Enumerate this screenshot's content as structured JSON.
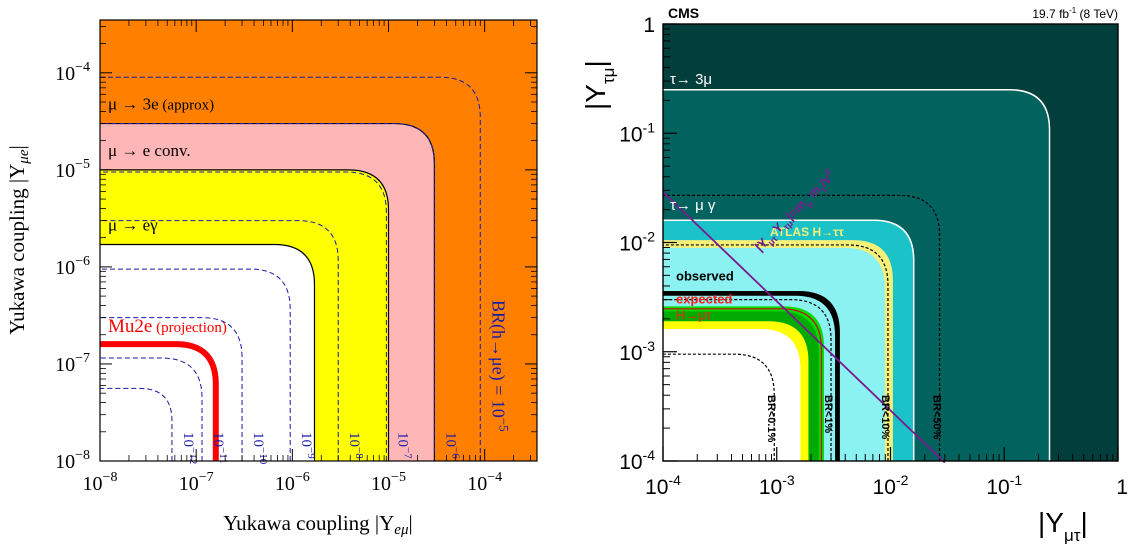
{
  "chart_data": [
    {
      "type": "area",
      "scale": "log-log",
      "xlabel_main": "Yukawa coupling |Y",
      "xlabel_sub": "eμ",
      "xlabel_end": "|",
      "ylabel_main": "Yukawa coupling |Y",
      "ylabel_sub": "μe",
      "ylabel_end": "|",
      "xlim": [
        1e-08,
        0.00035
      ],
      "ylim": [
        1e-08,
        0.00035
      ],
      "x_ticks": [
        {
          "value": 1e-08,
          "base": "10",
          "exp": "−8"
        },
        {
          "value": 1e-07,
          "base": "10",
          "exp": "−7"
        },
        {
          "value": 1e-06,
          "base": "10",
          "exp": "−6"
        },
        {
          "value": 1e-05,
          "base": "10",
          "exp": "−5"
        },
        {
          "value": 0.0001,
          "base": "10",
          "exp": "−4"
        }
      ],
      "y_ticks": [
        {
          "value": 1e-08,
          "base": "10",
          "exp": "−8"
        },
        {
          "value": 1e-07,
          "base": "10",
          "exp": "−7"
        },
        {
          "value": 1e-06,
          "base": "10",
          "exp": "−6"
        },
        {
          "value": 1e-05,
          "base": "10",
          "exp": "−5"
        },
        {
          "value": 0.0001,
          "base": "10",
          "exp": "−4"
        }
      ],
      "regions": [
        {
          "id": "mu3e",
          "limit": 3e-05,
          "color": "#ff8000",
          "label_main": "μ → 3e",
          "label_note": "(approx)"
        },
        {
          "id": "muconv",
          "limit": 1e-05,
          "color": "#ffb6b6",
          "label_main": "μ → e conv.",
          "label_note": ""
        },
        {
          "id": "megamma",
          "limit": 1.7e-06,
          "color": "#ffff00",
          "label_main": "μ → eγ",
          "label_note": ""
        },
        {
          "id": "mu2e",
          "limit": 1.6e-07,
          "color": "#ff0000",
          "label_main": "Mu2e",
          "label_note": "(projection)"
        }
      ],
      "br_contours": [
        {
          "br": "10−12",
          "base": "10",
          "exp": "−12",
          "r": 5.6e-08
        },
        {
          "br": "10−11",
          "base": "10",
          "exp": "−11",
          "r": 1.15e-07
        },
        {
          "br": "10−10",
          "base": "10",
          "exp": "−10",
          "r": 3e-07
        },
        {
          "br": "10−9",
          "base": "10",
          "exp": "−9",
          "r": 9.5e-07
        },
        {
          "br": "10−8",
          "base": "10",
          "exp": "−8",
          "r": 3e-06
        },
        {
          "br": "10−7",
          "base": "10",
          "exp": "−7",
          "r": 9.5e-06
        },
        {
          "br": "10−6",
          "base": "10",
          "exp": "−6",
          "r": 3e-05
        },
        {
          "br": "10−5",
          "base": "10",
          "exp": "−5",
          "r": 9e-05
        }
      ],
      "br_label_prefix": "BR(h→μe) = 10",
      "br_label_exp": "−5",
      "contour_color": "#1a1aa8"
    },
    {
      "type": "area",
      "scale": "log-log",
      "experiment": "CMS",
      "lumi": "19.7 fb",
      "lumi_exp": "-1",
      "lumi_energy": " (8 TeV)",
      "xlabel": "|Y",
      "xlabel_sub": "μτ",
      "xlabel_end": "|",
      "ylabel": "|Y",
      "ylabel_sub": "τμ",
      "ylabel_end": "|",
      "xlim": [
        0.0001,
        1
      ],
      "ylim": [
        0.0001,
        1
      ],
      "x_ticks": [
        {
          "value": 0.0001,
          "base": "10",
          "exp": "-4"
        },
        {
          "value": 0.001,
          "base": "10",
          "exp": "-3"
        },
        {
          "value": 0.01,
          "base": "10",
          "exp": "-2"
        },
        {
          "value": 0.1,
          "base": "10",
          "exp": "-1"
        },
        {
          "value": 1,
          "base": "1",
          "exp": ""
        }
      ],
      "y_ticks": [
        {
          "value": 0.0001,
          "base": "10",
          "exp": "-4"
        },
        {
          "value": 0.001,
          "base": "10",
          "exp": "-3"
        },
        {
          "value": 0.01,
          "base": "10",
          "exp": "-2"
        },
        {
          "value": 0.1,
          "base": "10",
          "exp": "-1"
        },
        {
          "value": 1,
          "base": "1",
          "exp": ""
        }
      ],
      "regions": [
        {
          "id": "tau3mu",
          "limit": 0.25,
          "color": "#02625e",
          "label": "τ→ 3μ",
          "label_color": "#ffffff"
        },
        {
          "id": "taumugamma",
          "limit": 0.016,
          "color": "#1bc3c8",
          "label": "τ→ μ γ",
          "label_color": "#ffffff"
        },
        {
          "id": "atlas",
          "limit": 0.0105,
          "color": "#f5f07a",
          "label": "ATLAS H→ττ",
          "label_color": "#f5f07a"
        },
        {
          "id": "observed",
          "limit": 0.0035,
          "color": "#000000",
          "label": "observed",
          "label_color": "#000000"
        },
        {
          "id": "expected",
          "limit": 0.0026,
          "color": "#00dd00",
          "label": "expected",
          "label_color": "#ff1a1a"
        }
      ],
      "expected_band_inner": 0.0019,
      "signal_label": "H→μτ",
      "signal_color": "#ff1a1a",
      "background_color": "#013e3c",
      "allowed_color": "#8cf1f1",
      "br_contours": [
        {
          "br": "BR<0.1%",
          "r": 0.00095
        },
        {
          "br": "BR<1%",
          "r": 0.003
        },
        {
          "br": "BR<10%",
          "r": 0.0095
        },
        {
          "br": "BR<50%",
          "r": 0.027
        }
      ],
      "naturalness": {
        "label": "|Y",
        "label_sub1": "μτ",
        "label_mid": " Y",
        "label_sub2": "τμ",
        "label_eq": "|=m",
        "label_sub3": "μ",
        "label_m": " m",
        "label_sub4": "τ",
        "label_end": "/v",
        "label_exp": "2",
        "product": 2.9e-06,
        "color": "#7a1a8f"
      }
    }
  ]
}
